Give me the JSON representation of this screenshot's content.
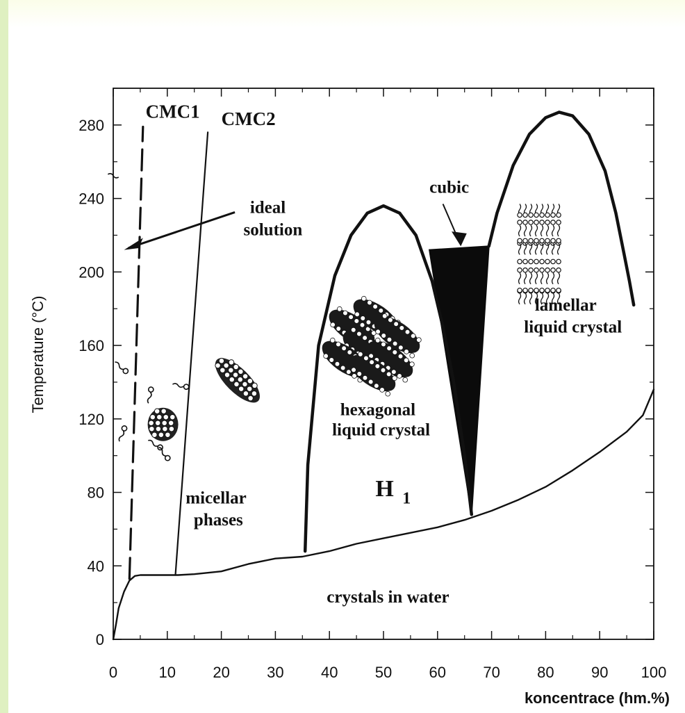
{
  "chart_data": {
    "type": "line",
    "title": "",
    "xlabel": "koncentrace (hm.%)",
    "ylabel": "Temperature (°C)",
    "xlim": [
      0,
      100
    ],
    "ylim": [
      0,
      300
    ],
    "x_ticks": [
      0,
      10,
      20,
      30,
      40,
      50,
      60,
      70,
      80,
      90,
      100
    ],
    "y_ticks": [
      0,
      40,
      80,
      120,
      160,
      200,
      240,
      280
    ],
    "grid": false,
    "series": [
      {
        "name": "",
        "x": [
          0,
          0.5,
          1,
          2,
          3,
          4,
          5,
          8,
          12,
          15,
          20,
          25,
          30,
          35,
          40,
          45,
          50,
          55,
          60,
          65,
          70,
          75,
          80,
          85,
          90,
          95,
          98,
          100
        ],
        "y": [
          0,
          8,
          17,
          26,
          32,
          34.5,
          35,
          35,
          35,
          35.5,
          37,
          41,
          44,
          45,
          48,
          52,
          55,
          58,
          61,
          65,
          70,
          76,
          83,
          92,
          102,
          113,
          122,
          136
        ]
      },
      {
        "name": "CMC1",
        "x": [
          3,
          5.5
        ],
        "y": [
          33,
          279
        ]
      },
      {
        "name": "CMC2",
        "x": [
          11.5,
          17.5
        ],
        "y": [
          35,
          276
        ]
      },
      {
        "name": "",
        "x": [
          35.5,
          36,
          38,
          41,
          44,
          47,
          50,
          53,
          56,
          59,
          61,
          63,
          65,
          66.3
        ],
        "y": [
          48,
          95,
          160,
          198,
          220,
          232,
          236,
          232,
          220,
          195,
          170,
          140,
          100,
          68
        ]
      },
      {
        "name": "",
        "x": [
          69.5,
          71,
          74,
          77,
          80,
          82.5,
          85,
          88,
          91,
          93,
          94.5,
          95.5,
          96.3
        ],
        "y": [
          214,
          232,
          258,
          275,
          284,
          287,
          285,
          275,
          255,
          232,
          210,
          195,
          182
        ]
      }
    ],
    "regions": [
      {
        "name": "cubic",
        "x": [
          58.5,
          69.5,
          66.3
        ],
        "y": [
          212,
          214,
          68
        ]
      }
    ],
    "annotations": [
      {
        "text": "CMC1",
        "x": 6,
        "y": 284
      },
      {
        "text": "CMC2",
        "x": 20,
        "y": 280
      },
      {
        "text": "ideal",
        "x": 25.3,
        "y": 232
      },
      {
        "text": "solution",
        "x": 24.1,
        "y": 220
      },
      {
        "text": "cubic",
        "x": 58.5,
        "y": 243
      },
      {
        "text": "lamellar",
        "x": 78,
        "y": 179
      },
      {
        "text": "liquid crystal",
        "x": 76,
        "y": 167
      },
      {
        "text": "hexagonal",
        "x": 42,
        "y": 122
      },
      {
        "text": "liquid crystal",
        "x": 40.5,
        "y": 111
      },
      {
        "text": "H",
        "x": 48.5,
        "y": 78
      },
      {
        "text": "1",
        "x": 53.5,
        "y": 74
      },
      {
        "text": "micellar",
        "x": 13.4,
        "y": 74
      },
      {
        "text": "phases",
        "x": 14.9,
        "y": 62
      },
      {
        "text": "crystals in water",
        "x": 39.5,
        "y": 20
      }
    ]
  }
}
